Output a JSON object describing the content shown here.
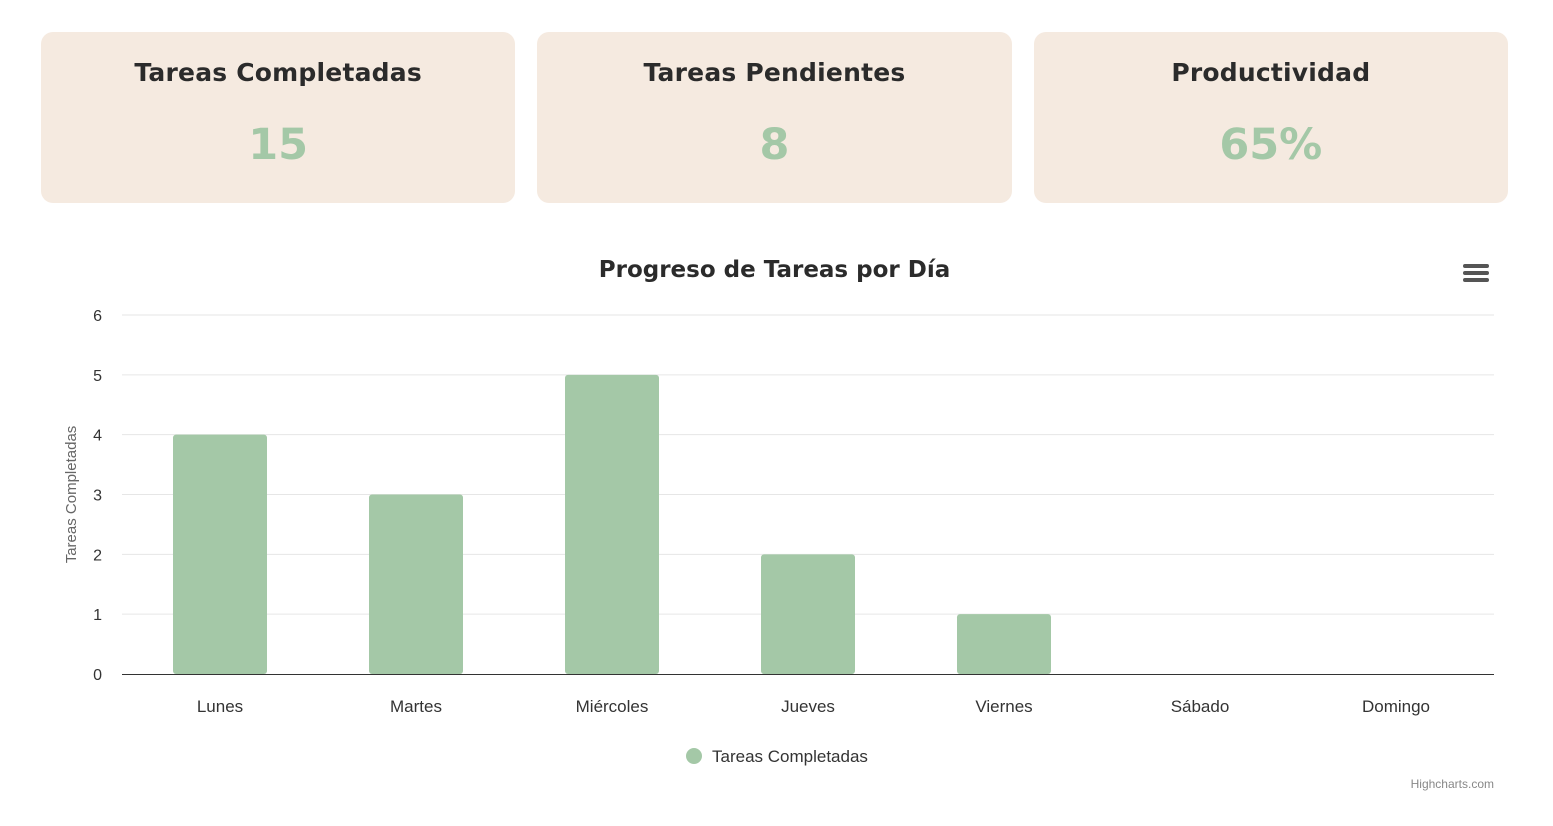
{
  "cards": [
    {
      "title": "Tareas Completadas",
      "value": "15"
    },
    {
      "title": "Tareas Pendientes",
      "value": "8"
    },
    {
      "title": "Productividad",
      "value": "65%"
    }
  ],
  "colors": {
    "card_bg": "#f5eae0",
    "accent": "#a4c8a7",
    "text": "#2b2b2b"
  },
  "chart": {
    "menu_icon": "hamburger-menu-icon",
    "credits": "Highcharts.com"
  },
  "chart_data": {
    "type": "bar",
    "title": "Progreso de Tareas por Día",
    "xlabel": "",
    "ylabel": "Tareas Completadas",
    "categories": [
      "Lunes",
      "Martes",
      "Miércoles",
      "Jueves",
      "Viernes",
      "Sábado",
      "Domingo"
    ],
    "series": [
      {
        "name": "Tareas Completadas",
        "values": [
          4,
          3,
          5,
          2,
          1,
          0,
          0
        ],
        "color": "#a4c8a7"
      }
    ],
    "ylim": [
      0,
      6
    ],
    "yticks": [
      0,
      1,
      2,
      3,
      4,
      5,
      6
    ],
    "grid": true,
    "legend": "bottom-center"
  }
}
